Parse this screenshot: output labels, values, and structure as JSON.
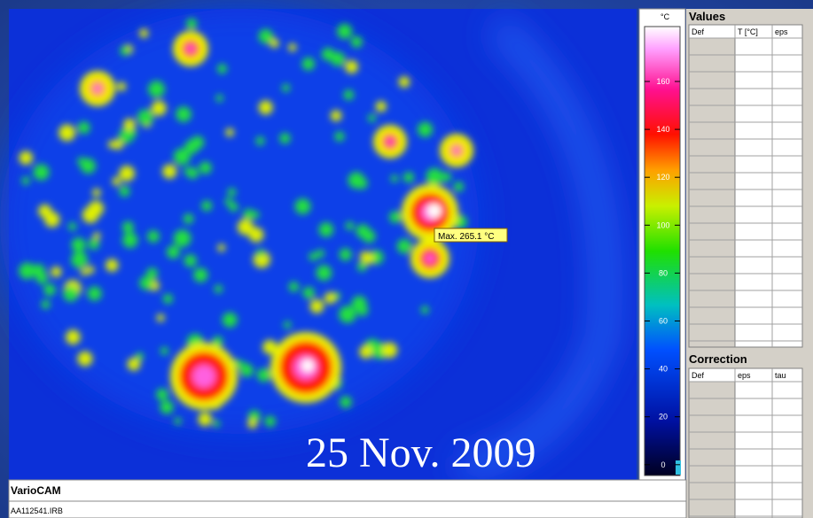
{
  "window": {
    "title": "VarioCAM",
    "file": "AA112541.IRB"
  },
  "image": {
    "marker": "Max. 265.1 °C",
    "date": "25 Nov. 2009"
  },
  "scale": {
    "unit": "°C",
    "ticks": [
      160,
      140,
      120,
      100,
      80,
      60,
      40,
      20,
      0
    ]
  },
  "values_panel": {
    "title": "Values",
    "columns": [
      "Def",
      "T [°C]",
      "eps"
    ]
  },
  "correction_panel": {
    "title": "Correction",
    "columns": [
      "Def",
      "eps",
      "tau"
    ]
  }
}
